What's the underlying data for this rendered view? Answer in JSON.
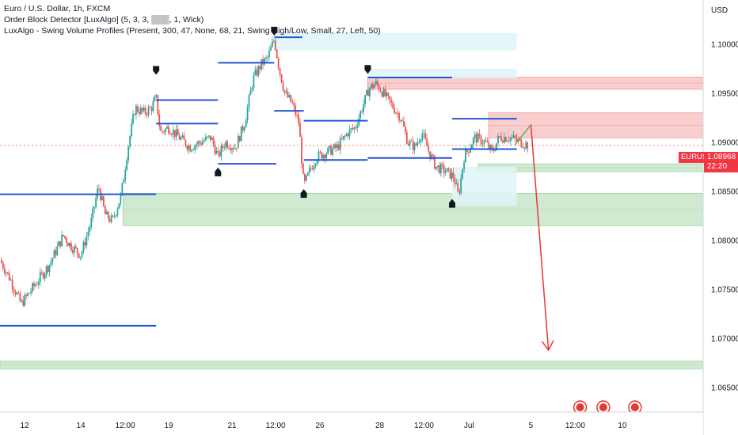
{
  "legend": {
    "line1": "Euro / U.S. Dollar, 1h, FXCM",
    "line2": "Order Block Detector [LuxAlgo] (5, 3, 3, ▒▒▒, 1, Wick)",
    "line3": "LuxAlgo - Swing Volume Profiles (Present, 300, 47, None, 68, 21, Swing High/Low, Small, 27, Left, 50)"
  },
  "axis": {
    "currency": "USD"
  },
  "price_tag": {
    "symbol": "EURUSD",
    "price": "1.08968",
    "countdown": "22:20"
  },
  "colors": {
    "bull": "#26a69a",
    "bear": "#ef5350",
    "level": "#2454d6",
    "red_zone": "#f7c5c5",
    "green_zone": "#c8e6c9",
    "cyan_zone": "#dff4f8",
    "arrow": "#e53935",
    "arrow_green": "#6aa84f"
  },
  "chart_data": {
    "type": "candlestick",
    "symbol": "EUR/USD",
    "timeframe": "1h",
    "y_axis": {
      "min": 1.0625,
      "max": 1.1045,
      "ticks": [
        1.1,
        1.095,
        1.09,
        1.085,
        1.08,
        1.075,
        1.07,
        1.065
      ],
      "tick_labels": [
        "1.10000",
        "1.09500",
        "1.09000",
        "1.08500",
        "1.08000",
        "1.07500",
        "1.07000",
        "1.06500"
      ]
    },
    "x_axis": {
      "ticks": [
        {
          "label": "12",
          "t": 0.035
        },
        {
          "label": "14",
          "t": 0.115
        },
        {
          "label": "12:00",
          "t": 0.178
        },
        {
          "label": "19",
          "t": 0.24
        },
        {
          "label": "21",
          "t": 0.33
        },
        {
          "label": "12:00",
          "t": 0.392
        },
        {
          "label": "26",
          "t": 0.455
        },
        {
          "label": "28",
          "t": 0.54
        },
        {
          "label": "12:00",
          "t": 0.603
        },
        {
          "label": "Jul",
          "t": 0.667
        },
        {
          "label": "5",
          "t": 0.755
        },
        {
          "label": "12:00",
          "t": 0.818
        },
        {
          "label": "10",
          "t": 0.885
        }
      ]
    },
    "price_path": [
      [
        0.0,
        1.078
      ],
      [
        0.015,
        1.076
      ],
      [
        0.03,
        1.0735
      ],
      [
        0.05,
        1.0755
      ],
      [
        0.07,
        1.0775
      ],
      [
        0.09,
        1.0805
      ],
      [
        0.1,
        1.0795
      ],
      [
        0.115,
        1.0785
      ],
      [
        0.13,
        1.082
      ],
      [
        0.14,
        1.0855
      ],
      [
        0.15,
        1.0825
      ],
      [
        0.16,
        1.082
      ],
      [
        0.172,
        1.0845
      ],
      [
        0.182,
        1.0895
      ],
      [
        0.192,
        1.0935
      ],
      [
        0.205,
        1.093
      ],
      [
        0.215,
        1.0935
      ],
      [
        0.222,
        1.0945
      ],
      [
        0.228,
        1.091
      ],
      [
        0.24,
        1.0915
      ],
      [
        0.255,
        1.0905
      ],
      [
        0.27,
        1.0895
      ],
      [
        0.285,
        1.09
      ],
      [
        0.3,
        1.0905
      ],
      [
        0.31,
        1.0885
      ],
      [
        0.32,
        1.09
      ],
      [
        0.335,
        1.0895
      ],
      [
        0.348,
        1.092
      ],
      [
        0.36,
        1.0965
      ],
      [
        0.372,
        1.098
      ],
      [
        0.38,
        1.0985
      ],
      [
        0.39,
        1.1005
      ],
      [
        0.397,
        1.0975
      ],
      [
        0.405,
        1.095
      ],
      [
        0.415,
        1.094
      ],
      [
        0.425,
        1.092
      ],
      [
        0.432,
        1.0855
      ],
      [
        0.44,
        1.087
      ],
      [
        0.45,
        1.0885
      ],
      [
        0.465,
        1.089
      ],
      [
        0.48,
        1.0895
      ],
      [
        0.495,
        1.091
      ],
      [
        0.505,
        1.0915
      ],
      [
        0.515,
        1.0935
      ],
      [
        0.525,
        1.0955
      ],
      [
        0.535,
        1.096
      ],
      [
        0.545,
        1.095
      ],
      [
        0.56,
        1.0935
      ],
      [
        0.57,
        1.0925
      ],
      [
        0.58,
        1.09
      ],
      [
        0.59,
        1.0895
      ],
      [
        0.6,
        1.091
      ],
      [
        0.61,
        1.089
      ],
      [
        0.62,
        1.0875
      ],
      [
        0.635,
        1.087
      ],
      [
        0.645,
        1.0865
      ],
      [
        0.652,
        1.0845
      ],
      [
        0.66,
        1.0885
      ],
      [
        0.675,
        1.0905
      ],
      [
        0.69,
        1.09
      ],
      [
        0.7,
        1.089
      ],
      [
        0.71,
        1.0905
      ],
      [
        0.725,
        1.0905
      ],
      [
        0.74,
        1.09
      ],
      [
        0.752,
        1.0897
      ]
    ],
    "swing_markers": [
      {
        "type": "high",
        "t": 0.222,
        "price": 1.0968
      },
      {
        "type": "low",
        "t": 0.31,
        "price": 1.0875
      },
      {
        "type": "high",
        "t": 0.39,
        "price": 1.1008
      },
      {
        "type": "low",
        "t": 0.432,
        "price": 1.0853
      },
      {
        "type": "high",
        "t": 0.523,
        "price": 1.0969
      },
      {
        "type": "low",
        "t": 0.643,
        "price": 1.0843
      }
    ],
    "levels": [
      {
        "price": 1.0847,
        "t0": 0.0,
        "t1": 0.222
      },
      {
        "price": 1.0713,
        "t0": 0.0,
        "t1": 0.222
      },
      {
        "price": 1.0943,
        "t0": 0.222,
        "t1": 0.31
      },
      {
        "price": 1.0919,
        "t0": 0.222,
        "t1": 0.31
      },
      {
        "price": 1.0878,
        "t0": 0.31,
        "t1": 0.393
      },
      {
        "price": 1.0981,
        "t0": 0.31,
        "t1": 0.39
      },
      {
        "price": 1.1007,
        "t0": 0.39,
        "t1": 0.43
      },
      {
        "price": 1.0932,
        "t0": 0.39,
        "t1": 0.432
      },
      {
        "price": 1.0922,
        "t0": 0.432,
        "t1": 0.523
      },
      {
        "price": 1.0882,
        "t0": 0.432,
        "t1": 0.523
      },
      {
        "price": 1.0966,
        "t0": 0.523,
        "t1": 0.643
      },
      {
        "price": 1.0884,
        "t0": 0.523,
        "t1": 0.643
      },
      {
        "price": 1.0924,
        "t0": 0.643,
        "t1": 0.735
      },
      {
        "price": 1.0893,
        "t0": 0.643,
        "t1": 0.735
      }
    ],
    "zones": [
      {
        "kind": "red",
        "p_top": 1.09665,
        "p_bot": 1.0954,
        "t0": 0.523,
        "t1": 1.0
      },
      {
        "kind": "red",
        "p_top": 1.093,
        "p_bot": 1.09045,
        "t0": 0.695,
        "t1": 1.0
      },
      {
        "kind": "green",
        "p_top": 1.0848,
        "p_bot": 1.0815,
        "t0": 0.175,
        "t1": 1.0
      },
      {
        "kind": "green",
        "p_top": 1.0878,
        "p_bot": 1.087,
        "t0": 0.68,
        "t1": 1.0
      },
      {
        "kind": "green",
        "p_top": 1.0677,
        "p_bot": 1.0669,
        "t0": 0.0,
        "t1": 1.0
      },
      {
        "kind": "cyan",
        "p_top": 1.10115,
        "p_bot": 1.09935,
        "t0": 0.39,
        "t1": 0.735
      },
      {
        "kind": "cyan",
        "p_top": 1.0975,
        "p_bot": 1.0965,
        "t0": 0.523,
        "t1": 0.735
      },
      {
        "kind": "cyan",
        "p_top": 1.0875,
        "p_bot": 1.0835,
        "t0": 0.643,
        "t1": 0.735
      }
    ],
    "projection": [
      {
        "from": [
          0.732,
          1.0897
        ],
        "to": [
          0.755,
          1.0918
        ],
        "color": "green"
      },
      {
        "from": [
          0.755,
          1.0918
        ],
        "to": [
          0.78,
          1.0688
        ],
        "color": "red"
      }
    ],
    "last_price": 1.08968
  }
}
